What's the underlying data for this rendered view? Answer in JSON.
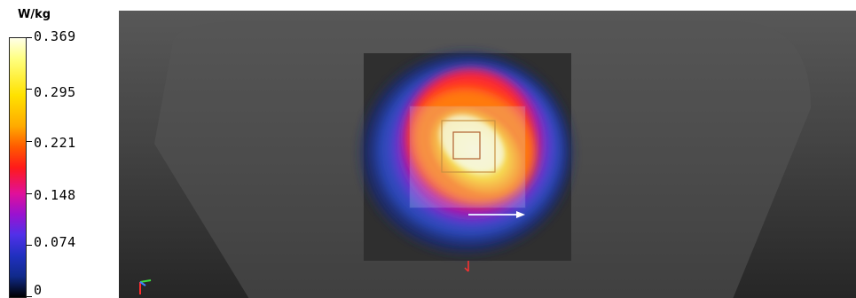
{
  "legend": {
    "unit": "W/kg",
    "ticks": [
      "0.369",
      "0.295",
      "0.221",
      "0.148",
      "0.074",
      "0"
    ]
  },
  "colors": {
    "background": "#ffffff",
    "viewport": "#444444",
    "scan_area": "#2f2f2f"
  },
  "icons": {
    "axes": "axes-triad-icon",
    "probe": "probe-marker-icon",
    "arrow": "direction-arrow-icon"
  }
}
